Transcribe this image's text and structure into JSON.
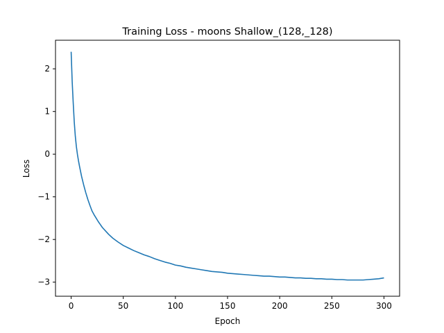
{
  "chart_data": {
    "type": "line",
    "title": "Training Loss - moons Shallow_(128,_128)",
    "xlabel": "Epoch",
    "ylabel": "Loss",
    "xlim": [
      -15,
      315
    ],
    "ylim": [
      -3.33,
      2.67
    ],
    "xticks": [
      0,
      50,
      100,
      150,
      200,
      250,
      300
    ],
    "yticks": [
      2,
      1,
      0,
      -1,
      -2,
      -3
    ],
    "ytick_labels": [
      "2",
      "1",
      "0",
      "−1",
      "−2",
      "−3"
    ],
    "grid": false,
    "series": [
      {
        "color": "#1f77b4",
        "x": [
          0,
          1,
          2,
          3,
          4,
          5,
          6,
          7,
          8,
          9,
          10,
          12,
          14,
          16,
          18,
          20,
          22,
          24,
          26,
          28,
          30,
          33,
          36,
          40,
          45,
          50,
          55,
          60,
          65,
          70,
          75,
          80,
          85,
          90,
          95,
          100,
          105,
          110,
          115,
          120,
          125,
          130,
          135,
          140,
          145,
          150,
          155,
          160,
          165,
          170,
          175,
          180,
          185,
          190,
          195,
          200,
          205,
          210,
          215,
          220,
          225,
          230,
          235,
          240,
          245,
          250,
          255,
          260,
          265,
          270,
          275,
          280,
          285,
          290,
          295,
          300
        ],
        "values": [
          2.4,
          1.7,
          1.2,
          0.75,
          0.42,
          0.18,
          0.0,
          -0.15,
          -0.28,
          -0.4,
          -0.52,
          -0.72,
          -0.9,
          -1.06,
          -1.2,
          -1.33,
          -1.42,
          -1.5,
          -1.58,
          -1.65,
          -1.72,
          -1.8,
          -1.88,
          -1.97,
          -2.06,
          -2.14,
          -2.2,
          -2.26,
          -2.31,
          -2.36,
          -2.4,
          -2.45,
          -2.49,
          -2.53,
          -2.56,
          -2.6,
          -2.62,
          -2.65,
          -2.67,
          -2.69,
          -2.71,
          -2.73,
          -2.75,
          -2.76,
          -2.77,
          -2.79,
          -2.8,
          -2.81,
          -2.82,
          -2.83,
          -2.84,
          -2.85,
          -2.86,
          -2.86,
          -2.87,
          -2.88,
          -2.88,
          -2.89,
          -2.9,
          -2.9,
          -2.91,
          -2.91,
          -2.92,
          -2.92,
          -2.93,
          -2.93,
          -2.94,
          -2.94,
          -2.95,
          -2.95,
          -2.95,
          -2.95,
          -2.94,
          -2.93,
          -2.92,
          -2.9
        ]
      }
    ]
  }
}
